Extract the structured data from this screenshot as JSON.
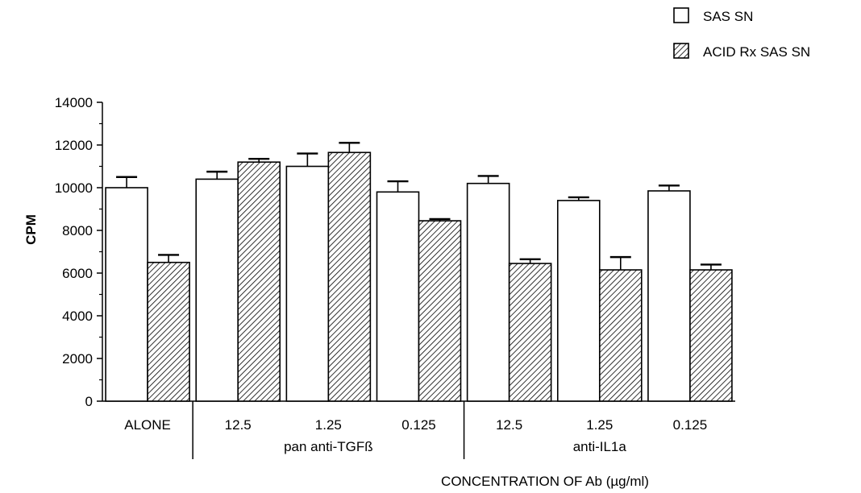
{
  "chart_data": {
    "type": "bar",
    "categories": [
      "ALONE",
      "12.5",
      "1.25",
      "0.125",
      "12.5",
      "1.25",
      "0.125"
    ],
    "groups": [
      {
        "label": "",
        "start": 0,
        "end": 0
      },
      {
        "label": "pan anti-TGFß",
        "start": 1,
        "end": 3
      },
      {
        "label": "anti-IL1a",
        "start": 4,
        "end": 6
      }
    ],
    "series": [
      {
        "name": "SAS SN",
        "fill": "open",
        "values": [
          10000,
          10400,
          11000,
          9800,
          10200,
          9400,
          9850
        ],
        "errors": [
          500,
          350,
          600,
          500,
          350,
          150,
          250
        ]
      },
      {
        "name": "ACID Rx SAS SN",
        "fill": "hatched",
        "values": [
          6500,
          11200,
          11650,
          8450,
          6450,
          6150,
          6150
        ],
        "errors": [
          350,
          150,
          450,
          80,
          200,
          600,
          250
        ]
      }
    ],
    "title": "",
    "xlabel": "CONCENTRATION OF Ab (µg/ml)",
    "ylabel": "CPM",
    "ylim": [
      0,
      14000
    ],
    "yticks": [
      0,
      2000,
      4000,
      6000,
      8000,
      10000,
      12000,
      14000
    ],
    "legend_position": "top-right",
    "grid": false
  }
}
